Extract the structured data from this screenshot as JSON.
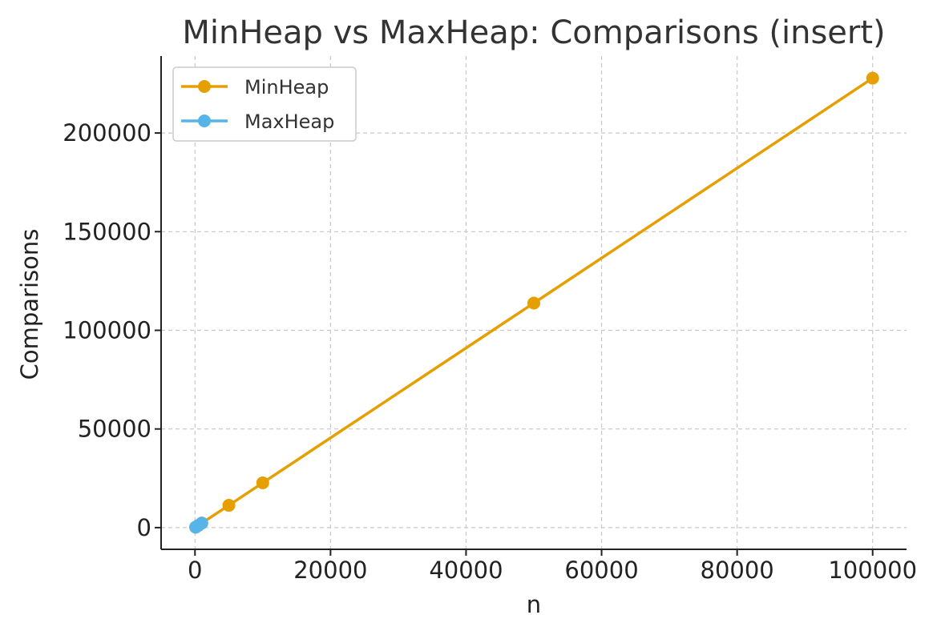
{
  "chart_data": {
    "type": "line",
    "title": "MinHeap vs MaxHeap: Comparisons (insert)",
    "xlabel": "n",
    "ylabel": "Comparisons",
    "xlim": [
      -5000,
      105000
    ],
    "ylim": [
      -11000,
      239000
    ],
    "xticks": [
      0,
      20000,
      40000,
      60000,
      80000,
      100000
    ],
    "yticks": [
      0,
      50000,
      100000,
      150000,
      200000
    ],
    "grid": true,
    "legend_position": "top-left",
    "series": [
      {
        "name": "MinHeap",
        "color": "#E69F00",
        "x": [
          100,
          500,
          1000,
          5000,
          10000,
          50000,
          100000
        ],
        "y": [
          230,
          1140,
          2280,
          11300,
          22700,
          113800,
          227800
        ]
      },
      {
        "name": "MaxHeap",
        "color": "#56B4E9",
        "x": [
          100,
          500,
          1000
        ],
        "y": [
          230,
          1140,
          2280
        ]
      }
    ]
  }
}
